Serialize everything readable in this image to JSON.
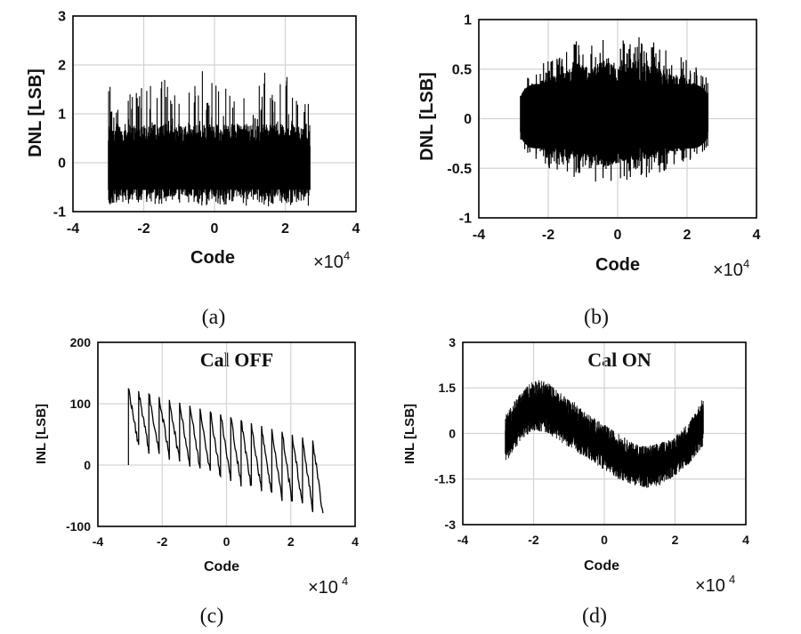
{
  "chart_data": [
    {
      "type": "line",
      "panel_label": "(a)",
      "title": "",
      "xlabel": "Code",
      "ylabel": "DNL [LSB]",
      "x_multiplier": "×10",
      "x_exponent": "4",
      "xlim": [
        -4,
        4
      ],
      "ylim": [
        -1,
        3
      ],
      "xticks": [
        "-4",
        "-2",
        "0",
        "2",
        "4"
      ],
      "yticks": [
        "-1",
        "0",
        "1",
        "2",
        "3"
      ],
      "grid": true,
      "series": [
        {
          "x": [
            -3.0,
            -2.8,
            -2.6,
            -2.3,
            -2.1,
            -1.8,
            -1.5,
            -1.2,
            -0.9,
            -0.6,
            -0.3,
            0.0,
            0.3,
            0.6,
            0.9,
            1.2,
            1.5,
            1.8,
            2.1,
            2.4,
            2.7
          ],
          "y_max": [
            1.9,
            1.2,
            1.9,
            1.5,
            1.8,
            1.6,
            2.0,
            1.4,
            1.9,
            1.5,
            2.2,
            1.6,
            2.0,
            1.4,
            2.0,
            1.5,
            2.1,
            1.6,
            1.9,
            1.4,
            1.8
          ],
          "y_min": [
            -0.9,
            -0.8,
            -0.9,
            -0.8,
            -0.9,
            -0.8,
            -0.9,
            -0.8,
            -0.9,
            -0.8,
            -0.9,
            -0.8,
            -0.9,
            -0.8,
            -0.9,
            -0.8,
            -0.9,
            -0.8,
            -0.9,
            -0.8,
            -0.9
          ]
        }
      ]
    },
    {
      "type": "line",
      "panel_label": "(b)",
      "title": "",
      "xlabel": "Code",
      "ylabel": "DNL [LSB]",
      "x_multiplier": "×10",
      "x_exponent": "4",
      "xlim": [
        -4,
        4
      ],
      "ylim": [
        -1,
        1
      ],
      "xticks": [
        "-4",
        "-2",
        "0",
        "2",
        "4"
      ],
      "yticks": [
        "-1",
        "-0.5",
        "0",
        "0.5",
        "1"
      ],
      "grid": true,
      "series": [
        {
          "x": [
            -2.8,
            -2.4,
            -2.0,
            -1.6,
            -1.2,
            -0.8,
            -0.4,
            0.0,
            0.4,
            0.8,
            1.2,
            1.6,
            2.0,
            2.4,
            2.6
          ],
          "y_max": [
            0.35,
            0.5,
            0.6,
            0.65,
            0.8,
            0.75,
            0.85,
            0.75,
            0.85,
            0.8,
            0.75,
            0.65,
            0.6,
            0.5,
            0.4
          ],
          "y_min": [
            -0.3,
            -0.4,
            -0.5,
            -0.55,
            -0.6,
            -0.62,
            -0.7,
            -0.65,
            -0.6,
            -0.6,
            -0.55,
            -0.5,
            -0.45,
            -0.35,
            -0.3
          ]
        }
      ]
    },
    {
      "type": "line",
      "panel_label": "(c)",
      "title": "Cal OFF",
      "xlabel": "Code",
      "ylabel": "INL [LSB]",
      "x_multiplier": "×10",
      "x_exponent": "4",
      "xlim": [
        -4,
        4
      ],
      "ylim": [
        -100,
        200
      ],
      "xticks": [
        "-4",
        "-2",
        "0",
        "2",
        "4"
      ],
      "yticks": [
        "-100",
        "0",
        "100",
        "200"
      ],
      "grid": true,
      "sawtooth": {
        "x_start": -3.05,
        "x_end": 3.0,
        "periods": 19,
        "peak_start": 125,
        "peak_end": 40,
        "trough_start": 30,
        "trough_end": -80
      }
    },
    {
      "type": "line",
      "panel_label": "(d)",
      "title": "Cal ON",
      "xlabel": "Code",
      "ylabel": "INL [LSB]",
      "x_multiplier": "×10",
      "x_exponent": "4",
      "xlim": [
        -4,
        4
      ],
      "ylim": [
        -3,
        3
      ],
      "xticks": [
        "-4",
        "-2",
        "0",
        "2",
        "4"
      ],
      "yticks": [
        "-3",
        "-1.5",
        "0",
        "1.5",
        "3"
      ],
      "grid": true,
      "series": [
        {
          "x": [
            -2.8,
            -2.4,
            -2.0,
            -1.6,
            -1.2,
            -0.8,
            -0.4,
            0.0,
            0.4,
            0.8,
            1.2,
            1.6,
            2.0,
            2.4,
            2.8
          ],
          "y_upper": [
            0.6,
            1.3,
            1.8,
            1.7,
            1.3,
            1.0,
            0.6,
            0.3,
            0.0,
            -0.3,
            -0.4,
            -0.3,
            -0.1,
            0.4,
            1.2
          ],
          "y_lower": [
            -1.0,
            -0.3,
            0.1,
            0.0,
            -0.3,
            -0.6,
            -0.9,
            -1.2,
            -1.5,
            -1.7,
            -1.8,
            -1.7,
            -1.4,
            -1.0,
            -0.4
          ]
        }
      ]
    }
  ]
}
